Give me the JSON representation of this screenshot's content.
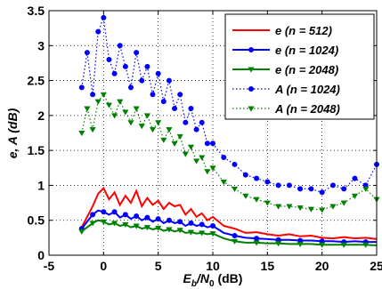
{
  "chart_data": {
    "type": "line",
    "xlabel": "E_b/N_0 (dB)",
    "ylabel": "e, A (dB)",
    "xlim": [
      -5,
      25
    ],
    "ylim": [
      0,
      3.5
    ],
    "xticks": [
      "-5",
      "0",
      "5",
      "10",
      "15",
      "20",
      "25"
    ],
    "yticks": [
      "0",
      "0.5",
      "1",
      "1.5",
      "2",
      "2.5",
      "3",
      "3.5"
    ],
    "grid": true,
    "legend_position": "top-right",
    "series": [
      {
        "name": "e (n =   512)",
        "color": "#ff0000",
        "line": "solid",
        "marker": "none",
        "x": [
          -2,
          -1.5,
          -1,
          -0.5,
          0,
          0.5,
          1,
          1.5,
          2,
          2.5,
          3,
          3.5,
          4,
          4.5,
          5,
          5.5,
          6,
          6.5,
          7,
          7.5,
          8,
          8.5,
          9,
          9.5,
          10,
          11,
          12,
          13,
          14,
          15,
          16,
          17,
          18,
          19,
          20,
          21,
          22,
          23,
          24,
          25
        ],
        "y": [
          0.4,
          0.55,
          0.7,
          0.88,
          0.96,
          0.8,
          0.9,
          0.72,
          0.85,
          0.75,
          0.92,
          0.7,
          0.82,
          0.72,
          0.78,
          0.66,
          0.75,
          0.7,
          0.72,
          0.58,
          0.66,
          0.55,
          0.6,
          0.5,
          0.55,
          0.42,
          0.38,
          0.32,
          0.33,
          0.3,
          0.28,
          0.3,
          0.27,
          0.28,
          0.25,
          0.24,
          0.26,
          0.24,
          0.25,
          0.23
        ]
      },
      {
        "name": "e (n = 1024)",
        "color": "#0000ff",
        "line": "solid",
        "marker": "o",
        "x": [
          -2,
          -1.5,
          -1,
          -0.5,
          0,
          0.5,
          1,
          1.5,
          2,
          2.5,
          3,
          3.5,
          4,
          4.5,
          5,
          5.5,
          6,
          6.5,
          7,
          7.5,
          8,
          8.5,
          9,
          9.5,
          10,
          11,
          12,
          13,
          14,
          15,
          16,
          17,
          18,
          19,
          20,
          21,
          22,
          23,
          24,
          25
        ],
        "y": [
          0.38,
          0.48,
          0.58,
          0.64,
          0.62,
          0.58,
          0.62,
          0.54,
          0.58,
          0.52,
          0.56,
          0.5,
          0.54,
          0.48,
          0.52,
          0.46,
          0.5,
          0.46,
          0.48,
          0.42,
          0.46,
          0.42,
          0.44,
          0.4,
          0.42,
          0.32,
          0.28,
          0.25,
          0.24,
          0.23,
          0.22,
          0.22,
          0.21,
          0.21,
          0.2,
          0.2,
          0.19,
          0.2,
          0.19,
          0.19
        ]
      },
      {
        "name": "e (n = 2048)",
        "color": "#008000",
        "line": "solid",
        "marker": "v",
        "x": [
          -2,
          -1.5,
          -1,
          -0.5,
          0,
          0.5,
          1,
          1.5,
          2,
          2.5,
          3,
          3.5,
          4,
          4.5,
          5,
          5.5,
          6,
          6.5,
          7,
          7.5,
          8,
          8.5,
          9,
          9.5,
          10,
          11,
          12,
          13,
          14,
          15,
          16,
          17,
          18,
          19,
          20,
          21,
          22,
          23,
          24,
          25
        ],
        "y": [
          0.34,
          0.4,
          0.46,
          0.5,
          0.48,
          0.44,
          0.46,
          0.42,
          0.44,
          0.4,
          0.42,
          0.38,
          0.4,
          0.37,
          0.39,
          0.35,
          0.37,
          0.34,
          0.36,
          0.32,
          0.33,
          0.31,
          0.32,
          0.3,
          0.31,
          0.24,
          0.2,
          0.18,
          0.18,
          0.17,
          0.17,
          0.16,
          0.16,
          0.16,
          0.15,
          0.15,
          0.15,
          0.15,
          0.15,
          0.14
        ]
      },
      {
        "name": "A (n = 1024)",
        "color": "#0000ff",
        "line": "dotted",
        "marker": "o",
        "x": [
          -2,
          -1.5,
          -1,
          -0.5,
          0,
          0.5,
          1,
          1.5,
          2,
          2.5,
          3,
          3.5,
          4,
          4.5,
          5,
          5.5,
          6,
          6.5,
          7,
          7.5,
          8,
          8.5,
          9,
          9.5,
          10,
          11,
          12,
          13,
          14,
          15,
          16,
          17,
          18,
          19,
          20,
          21,
          22,
          23,
          24,
          25
        ],
        "y": [
          2.4,
          2.9,
          2.3,
          3.2,
          3.4,
          2.8,
          2.6,
          3.0,
          2.7,
          2.4,
          2.9,
          2.5,
          2.7,
          2.3,
          2.6,
          2.2,
          2.5,
          2.1,
          2.3,
          1.9,
          2.1,
          1.8,
          1.9,
          1.6,
          1.6,
          1.4,
          1.3,
          1.15,
          1.1,
          1.05,
          1.0,
          1.0,
          0.95,
          0.95,
          0.9,
          1.0,
          0.95,
          1.1,
          1.0,
          1.3
        ]
      },
      {
        "name": "A (n = 2048)",
        "color": "#008000",
        "line": "dotted",
        "marker": "v",
        "x": [
          -2,
          -1.5,
          -1,
          -0.5,
          0,
          0.5,
          1,
          1.5,
          2,
          2.5,
          3,
          3.5,
          4,
          4.5,
          5,
          5.5,
          6,
          6.5,
          7,
          7.5,
          8,
          8.5,
          9,
          9.5,
          10,
          11,
          12,
          13,
          14,
          15,
          16,
          17,
          18,
          19,
          20,
          21,
          22,
          23,
          24,
          25
        ],
        "y": [
          1.75,
          2.1,
          1.8,
          2.2,
          2.3,
          2.15,
          2.0,
          2.2,
          2.05,
          1.9,
          2.1,
          1.85,
          2.0,
          1.8,
          1.9,
          1.65,
          1.8,
          1.6,
          1.7,
          1.45,
          1.55,
          1.35,
          1.4,
          1.2,
          1.25,
          1.05,
          0.95,
          0.85,
          0.8,
          0.75,
          0.7,
          0.7,
          0.68,
          0.66,
          0.65,
          0.7,
          0.75,
          0.85,
          0.95,
          0.8
        ]
      }
    ]
  }
}
